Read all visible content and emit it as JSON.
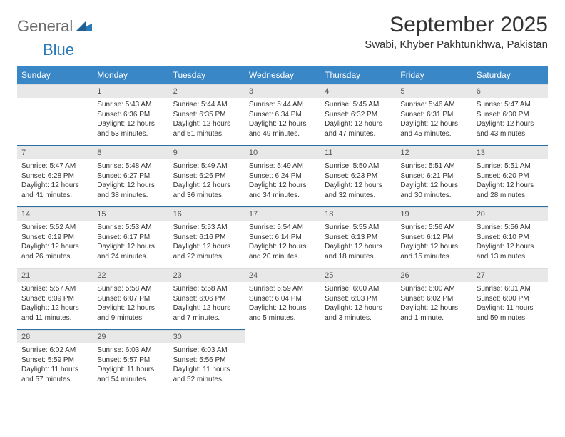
{
  "brand": {
    "part1": "General",
    "part2": "Blue"
  },
  "title": "September 2025",
  "location": "Swabi, Khyber Pakhtunkhwa, Pakistan",
  "colors": {
    "header_bg": "#3a87c7",
    "header_text": "#ffffff",
    "daynum_bg": "#e8e8e8",
    "rule": "#2a6fa3",
    "brand_gray": "#6b6b6b",
    "brand_blue": "#2a7ab8",
    "body_text": "#333333"
  },
  "typography": {
    "title_fontsize": 30,
    "location_fontsize": 15,
    "header_fontsize": 12,
    "daynum_fontsize": 11,
    "body_fontsize": 10
  },
  "layout": {
    "columns": 7,
    "rows": 5
  },
  "calendar": {
    "type": "table",
    "headers": [
      "Sunday",
      "Monday",
      "Tuesday",
      "Wednesday",
      "Thursday",
      "Friday",
      "Saturday"
    ],
    "weeks": [
      [
        null,
        {
          "d": "1",
          "sr": "Sunrise: 5:43 AM",
          "ss": "Sunset: 6:36 PM",
          "dl": "Daylight: 12 hours and 53 minutes."
        },
        {
          "d": "2",
          "sr": "Sunrise: 5:44 AM",
          "ss": "Sunset: 6:35 PM",
          "dl": "Daylight: 12 hours and 51 minutes."
        },
        {
          "d": "3",
          "sr": "Sunrise: 5:44 AM",
          "ss": "Sunset: 6:34 PM",
          "dl": "Daylight: 12 hours and 49 minutes."
        },
        {
          "d": "4",
          "sr": "Sunrise: 5:45 AM",
          "ss": "Sunset: 6:32 PM",
          "dl": "Daylight: 12 hours and 47 minutes."
        },
        {
          "d": "5",
          "sr": "Sunrise: 5:46 AM",
          "ss": "Sunset: 6:31 PM",
          "dl": "Daylight: 12 hours and 45 minutes."
        },
        {
          "d": "6",
          "sr": "Sunrise: 5:47 AM",
          "ss": "Sunset: 6:30 PM",
          "dl": "Daylight: 12 hours and 43 minutes."
        }
      ],
      [
        {
          "d": "7",
          "sr": "Sunrise: 5:47 AM",
          "ss": "Sunset: 6:28 PM",
          "dl": "Daylight: 12 hours and 41 minutes."
        },
        {
          "d": "8",
          "sr": "Sunrise: 5:48 AM",
          "ss": "Sunset: 6:27 PM",
          "dl": "Daylight: 12 hours and 38 minutes."
        },
        {
          "d": "9",
          "sr": "Sunrise: 5:49 AM",
          "ss": "Sunset: 6:26 PM",
          "dl": "Daylight: 12 hours and 36 minutes."
        },
        {
          "d": "10",
          "sr": "Sunrise: 5:49 AM",
          "ss": "Sunset: 6:24 PM",
          "dl": "Daylight: 12 hours and 34 minutes."
        },
        {
          "d": "11",
          "sr": "Sunrise: 5:50 AM",
          "ss": "Sunset: 6:23 PM",
          "dl": "Daylight: 12 hours and 32 minutes."
        },
        {
          "d": "12",
          "sr": "Sunrise: 5:51 AM",
          "ss": "Sunset: 6:21 PM",
          "dl": "Daylight: 12 hours and 30 minutes."
        },
        {
          "d": "13",
          "sr": "Sunrise: 5:51 AM",
          "ss": "Sunset: 6:20 PM",
          "dl": "Daylight: 12 hours and 28 minutes."
        }
      ],
      [
        {
          "d": "14",
          "sr": "Sunrise: 5:52 AM",
          "ss": "Sunset: 6:19 PM",
          "dl": "Daylight: 12 hours and 26 minutes."
        },
        {
          "d": "15",
          "sr": "Sunrise: 5:53 AM",
          "ss": "Sunset: 6:17 PM",
          "dl": "Daylight: 12 hours and 24 minutes."
        },
        {
          "d": "16",
          "sr": "Sunrise: 5:53 AM",
          "ss": "Sunset: 6:16 PM",
          "dl": "Daylight: 12 hours and 22 minutes."
        },
        {
          "d": "17",
          "sr": "Sunrise: 5:54 AM",
          "ss": "Sunset: 6:14 PM",
          "dl": "Daylight: 12 hours and 20 minutes."
        },
        {
          "d": "18",
          "sr": "Sunrise: 5:55 AM",
          "ss": "Sunset: 6:13 PM",
          "dl": "Daylight: 12 hours and 18 minutes."
        },
        {
          "d": "19",
          "sr": "Sunrise: 5:56 AM",
          "ss": "Sunset: 6:12 PM",
          "dl": "Daylight: 12 hours and 15 minutes."
        },
        {
          "d": "20",
          "sr": "Sunrise: 5:56 AM",
          "ss": "Sunset: 6:10 PM",
          "dl": "Daylight: 12 hours and 13 minutes."
        }
      ],
      [
        {
          "d": "21",
          "sr": "Sunrise: 5:57 AM",
          "ss": "Sunset: 6:09 PM",
          "dl": "Daylight: 12 hours and 11 minutes."
        },
        {
          "d": "22",
          "sr": "Sunrise: 5:58 AM",
          "ss": "Sunset: 6:07 PM",
          "dl": "Daylight: 12 hours and 9 minutes."
        },
        {
          "d": "23",
          "sr": "Sunrise: 5:58 AM",
          "ss": "Sunset: 6:06 PM",
          "dl": "Daylight: 12 hours and 7 minutes."
        },
        {
          "d": "24",
          "sr": "Sunrise: 5:59 AM",
          "ss": "Sunset: 6:04 PM",
          "dl": "Daylight: 12 hours and 5 minutes."
        },
        {
          "d": "25",
          "sr": "Sunrise: 6:00 AM",
          "ss": "Sunset: 6:03 PM",
          "dl": "Daylight: 12 hours and 3 minutes."
        },
        {
          "d": "26",
          "sr": "Sunrise: 6:00 AM",
          "ss": "Sunset: 6:02 PM",
          "dl": "Daylight: 12 hours and 1 minute."
        },
        {
          "d": "27",
          "sr": "Sunrise: 6:01 AM",
          "ss": "Sunset: 6:00 PM",
          "dl": "Daylight: 11 hours and 59 minutes."
        }
      ],
      [
        {
          "d": "28",
          "sr": "Sunrise: 6:02 AM",
          "ss": "Sunset: 5:59 PM",
          "dl": "Daylight: 11 hours and 57 minutes."
        },
        {
          "d": "29",
          "sr": "Sunrise: 6:03 AM",
          "ss": "Sunset: 5:57 PM",
          "dl": "Daylight: 11 hours and 54 minutes."
        },
        {
          "d": "30",
          "sr": "Sunrise: 6:03 AM",
          "ss": "Sunset: 5:56 PM",
          "dl": "Daylight: 11 hours and 52 minutes."
        },
        null,
        null,
        null,
        null
      ]
    ]
  }
}
